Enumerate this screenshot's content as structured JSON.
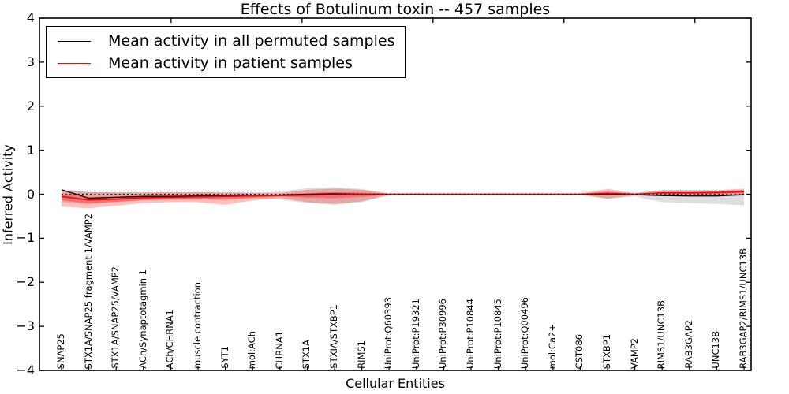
{
  "title": "Effects of Botulinum toxin -- 457 samples",
  "legend": {
    "items": [
      {
        "label": "Mean activity in all permuted samples",
        "color": "#000000"
      },
      {
        "label": "Mean activity in patient samples",
        "color": "#ff0000"
      }
    ]
  },
  "chart_data": {
    "type": "line",
    "title": "Effects of Botulinum toxin -- 457 samples",
    "xlabel": "Cellular Entities",
    "ylabel": "Inferred Activity",
    "ylim": [
      -4,
      4
    ],
    "yticks": [
      4,
      3,
      2,
      1,
      0,
      -1,
      -2,
      -3,
      -4
    ],
    "grid": false,
    "zero_line": true,
    "legend_position": "upper left",
    "categories": [
      "SNAP25",
      "STX1A/SNAP25 fragment 1/VAMP2",
      "STX1A/SNAP25/VAMP2",
      "ACh/Synaptotagmin 1",
      "ACh/CHRNA1",
      "muscle contraction",
      "SYT1",
      "mol:ACh",
      "CHRNA1",
      "STX1A",
      "STXIA/STXBP1",
      "RIMS1",
      "UniProt:Q60393",
      "UniProt:P19321",
      "UniProt:P30996",
      "UniProt:P10844",
      "UniProt:P10845",
      "UniProt:Q00496",
      "mol:Ca2+",
      "CST086",
      "STXBP1",
      "VAMP2",
      "RIMS1/UNC13B",
      "RAB3GAP2",
      "UNC13B",
      "RAB3GAP2/RIMS1/UNC13B"
    ],
    "series": [
      {
        "name": "Mean activity in all permuted samples",
        "color": "#000000",
        "width": 1.3,
        "values": [
          0.1,
          -0.09,
          -0.07,
          -0.05,
          -0.05,
          -0.04,
          -0.03,
          -0.02,
          -0.02,
          0.0,
          0.01,
          0.0,
          0.0,
          0.0,
          0.0,
          0.0,
          0.0,
          0.0,
          0.0,
          0.0,
          0.0,
          -0.01,
          -0.03,
          -0.04,
          -0.04,
          -0.01
        ]
      },
      {
        "name": "Mean activity in patient samples",
        "color": "#ff0000",
        "width": 1.6,
        "values": [
          -0.05,
          -0.13,
          -0.11,
          -0.08,
          -0.07,
          -0.06,
          -0.05,
          -0.04,
          -0.03,
          -0.02,
          -0.01,
          0.0,
          0.0,
          0.0,
          0.0,
          0.0,
          0.0,
          0.0,
          0.0,
          0.0,
          0.02,
          0.0,
          0.03,
          0.03,
          0.04,
          0.06
        ]
      }
    ],
    "bands": [
      {
        "name": "permuted-range-band",
        "color": "#000000",
        "opacity": 0.13,
        "upper": [
          0.12,
          0.05,
          0.04,
          0.04,
          0.04,
          0.04,
          0.05,
          0.04,
          0.06,
          0.14,
          0.16,
          0.12,
          0.0,
          0.0,
          0.0,
          0.0,
          0.0,
          0.0,
          0.0,
          0.0,
          0.05,
          0.03,
          0.1,
          0.1,
          0.09,
          0.1
        ],
        "lower": [
          -0.18,
          -0.22,
          -0.18,
          -0.14,
          -0.13,
          -0.12,
          -0.11,
          -0.09,
          -0.12,
          -0.2,
          -0.24,
          -0.18,
          0.0,
          0.0,
          0.0,
          0.0,
          0.0,
          0.0,
          0.0,
          0.0,
          -0.1,
          -0.05,
          -0.18,
          -0.2,
          -0.22,
          -0.25
        ]
      },
      {
        "name": "patient-range-outer-band",
        "color": "#ff0000",
        "opacity": 0.25,
        "upper": [
          0.08,
          0.05,
          0.04,
          0.04,
          0.05,
          0.05,
          0.04,
          0.03,
          0.02,
          0.1,
          0.13,
          0.1,
          0.02,
          0.02,
          0.02,
          0.02,
          0.02,
          0.02,
          0.02,
          0.02,
          0.12,
          0.02,
          0.09,
          0.09,
          0.09,
          0.13
        ],
        "lower": [
          -0.28,
          -0.32,
          -0.26,
          -0.2,
          -0.18,
          -0.18,
          -0.24,
          -0.14,
          -0.08,
          -0.18,
          -0.22,
          -0.16,
          -0.02,
          -0.02,
          -0.02,
          -0.02,
          -0.02,
          -0.02,
          -0.02,
          -0.02,
          -0.1,
          -0.02,
          -0.04,
          -0.04,
          -0.04,
          -0.03
        ],
        "legend": "Mean activity in patient samples"
      },
      {
        "name": "patient-range-inner-band",
        "color": "#ff0000",
        "opacity": 0.3,
        "upper": [
          0.0,
          -0.06,
          -0.05,
          -0.03,
          -0.02,
          -0.02,
          -0.01,
          -0.01,
          -0.01,
          0.03,
          0.05,
          0.04,
          0.01,
          0.01,
          0.01,
          0.01,
          0.01,
          0.01,
          0.01,
          0.01,
          0.06,
          0.01,
          0.05,
          0.05,
          0.06,
          0.09
        ],
        "lower": [
          -0.14,
          -0.21,
          -0.17,
          -0.13,
          -0.11,
          -0.11,
          -0.13,
          -0.08,
          -0.05,
          -0.08,
          -0.09,
          -0.06,
          -0.01,
          -0.01,
          -0.01,
          -0.01,
          -0.01,
          -0.01,
          -0.01,
          -0.01,
          -0.03,
          -0.01,
          0.0,
          0.0,
          0.01,
          0.02
        ]
      }
    ]
  }
}
